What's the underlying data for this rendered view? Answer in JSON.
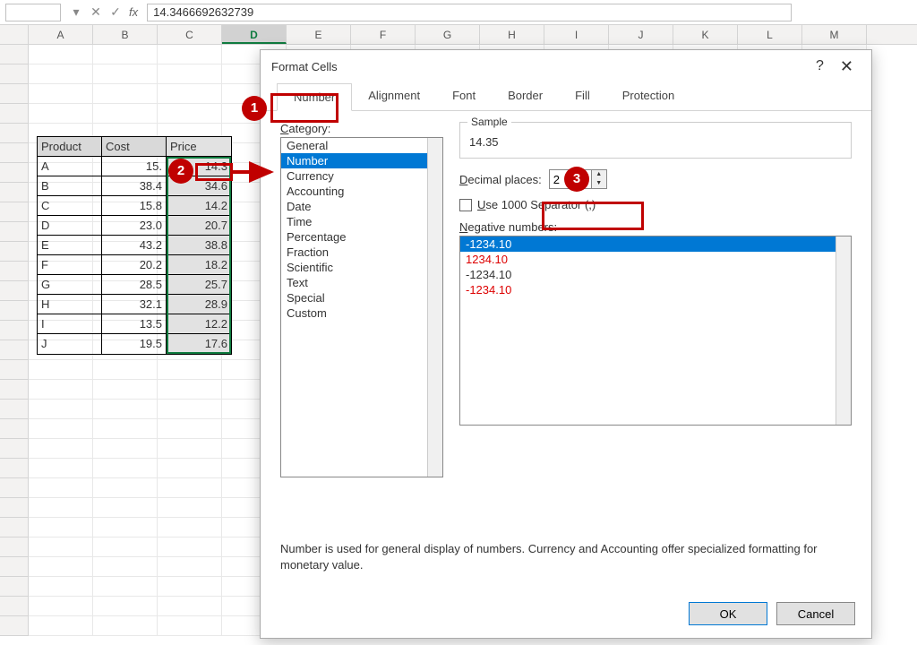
{
  "formula_bar": {
    "fx": "fx",
    "value": "14.3466692632739"
  },
  "columns": [
    "A",
    "B",
    "C",
    "D",
    "E",
    "F",
    "G",
    "H",
    "I",
    "J",
    "K",
    "L",
    "M"
  ],
  "selected_col": "D",
  "table": {
    "headers": [
      "Product",
      "Cost",
      "Price"
    ],
    "rows": [
      [
        "A",
        "15.",
        "14.3"
      ],
      [
        "B",
        "38.4",
        "34.6"
      ],
      [
        "C",
        "15.8",
        "14.2"
      ],
      [
        "D",
        "23.0",
        "20.7"
      ],
      [
        "E",
        "43.2",
        "38.8"
      ],
      [
        "F",
        "20.2",
        "18.2"
      ],
      [
        "G",
        "28.5",
        "25.7"
      ],
      [
        "H",
        "32.1",
        "28.9"
      ],
      [
        "I",
        "13.5",
        "12.2"
      ],
      [
        "J",
        "19.5",
        "17.6"
      ]
    ]
  },
  "dialog": {
    "title": "Format Cells",
    "tabs": [
      "Number",
      "Alignment",
      "Font",
      "Border",
      "Fill",
      "Protection"
    ],
    "active_tab": "Number",
    "category_label": "Category:",
    "categories": [
      "General",
      "Number",
      "Currency",
      "Accounting",
      "Date",
      "Time",
      "Percentage",
      "Fraction",
      "Scientific",
      "Text",
      "Special",
      "Custom"
    ],
    "selected_category": "Number",
    "sample_label": "Sample",
    "sample_value": "14.35",
    "decimal_label": "Decimal places:",
    "decimal_value": "2",
    "separator_label": "Use 1000 Separator (,)",
    "negative_label": "Negative numbers:",
    "negative_items": [
      {
        "text": "-1234.10",
        "sel": true,
        "red": false
      },
      {
        "text": "1234.10",
        "sel": false,
        "red": true
      },
      {
        "text": "-1234.10",
        "sel": false,
        "red": false
      },
      {
        "text": "-1234.10",
        "sel": false,
        "red": true
      }
    ],
    "description": "Number is used for general display of numbers.  Currency and Accounting offer specialized formatting for monetary value.",
    "ok": "OK",
    "cancel": "Cancel"
  },
  "callouts": {
    "c1": "1",
    "c2": "2",
    "c3": "3"
  }
}
